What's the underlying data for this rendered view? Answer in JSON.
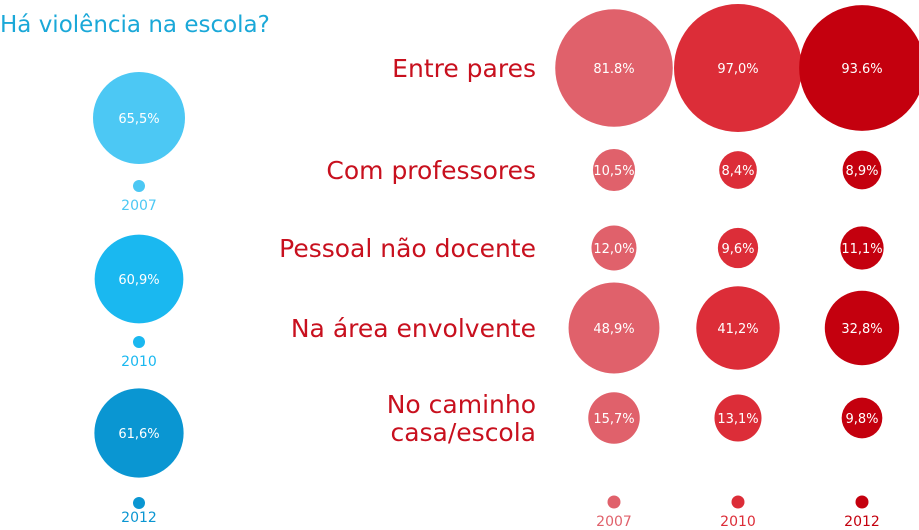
{
  "title": "Há violência na escola?",
  "chart_data": [
    {
      "type": "scatter",
      "title": "Há violência na escola?",
      "x": [
        "2007",
        "2010",
        "2012"
      ],
      "values": [
        65.5,
        60.9,
        61.6
      ],
      "value_labels": [
        "65,5%",
        "60,9%",
        "61,6%"
      ],
      "colors": [
        "#4cc8f4",
        "#1ab8f0",
        "#0a96d2"
      ]
    },
    {
      "type": "scatter",
      "categories": [
        "Entre pares",
        "Com professores",
        "Pessoal não docente",
        "Na área envolvente",
        "No caminho casa/escola"
      ],
      "category_lines": [
        [
          "Entre pares"
        ],
        [
          "Com professores"
        ],
        [
          "Pessoal não docente"
        ],
        [
          "Na área envolvente"
        ],
        [
          "No caminho",
          "casa/escola"
        ]
      ],
      "x": [
        "2007",
        "2010",
        "2012"
      ],
      "series": [
        {
          "name": "2007",
          "color": "#e0616b",
          "values": [
            81.8,
            10.5,
            12.0,
            48.9,
            15.7
          ],
          "labels": [
            "81.8%",
            "10,5%",
            "12,0%",
            "48,9%",
            "15,7%"
          ]
        },
        {
          "name": "2010",
          "color": "#dc2d38",
          "values": [
            97.0,
            8.4,
            9.6,
            41.2,
            13.1
          ],
          "labels": [
            "97,0%",
            "8,4%",
            "9,6%",
            "41,2%",
            "13,1%"
          ]
        },
        {
          "name": "2012",
          "color": "#c4000e",
          "values": [
            93.6,
            8.9,
            11.1,
            32.8,
            9.8
          ],
          "labels": [
            "93.6%",
            "8,9%",
            "11,1%",
            "32,8%",
            "9,8%"
          ]
        }
      ]
    }
  ]
}
